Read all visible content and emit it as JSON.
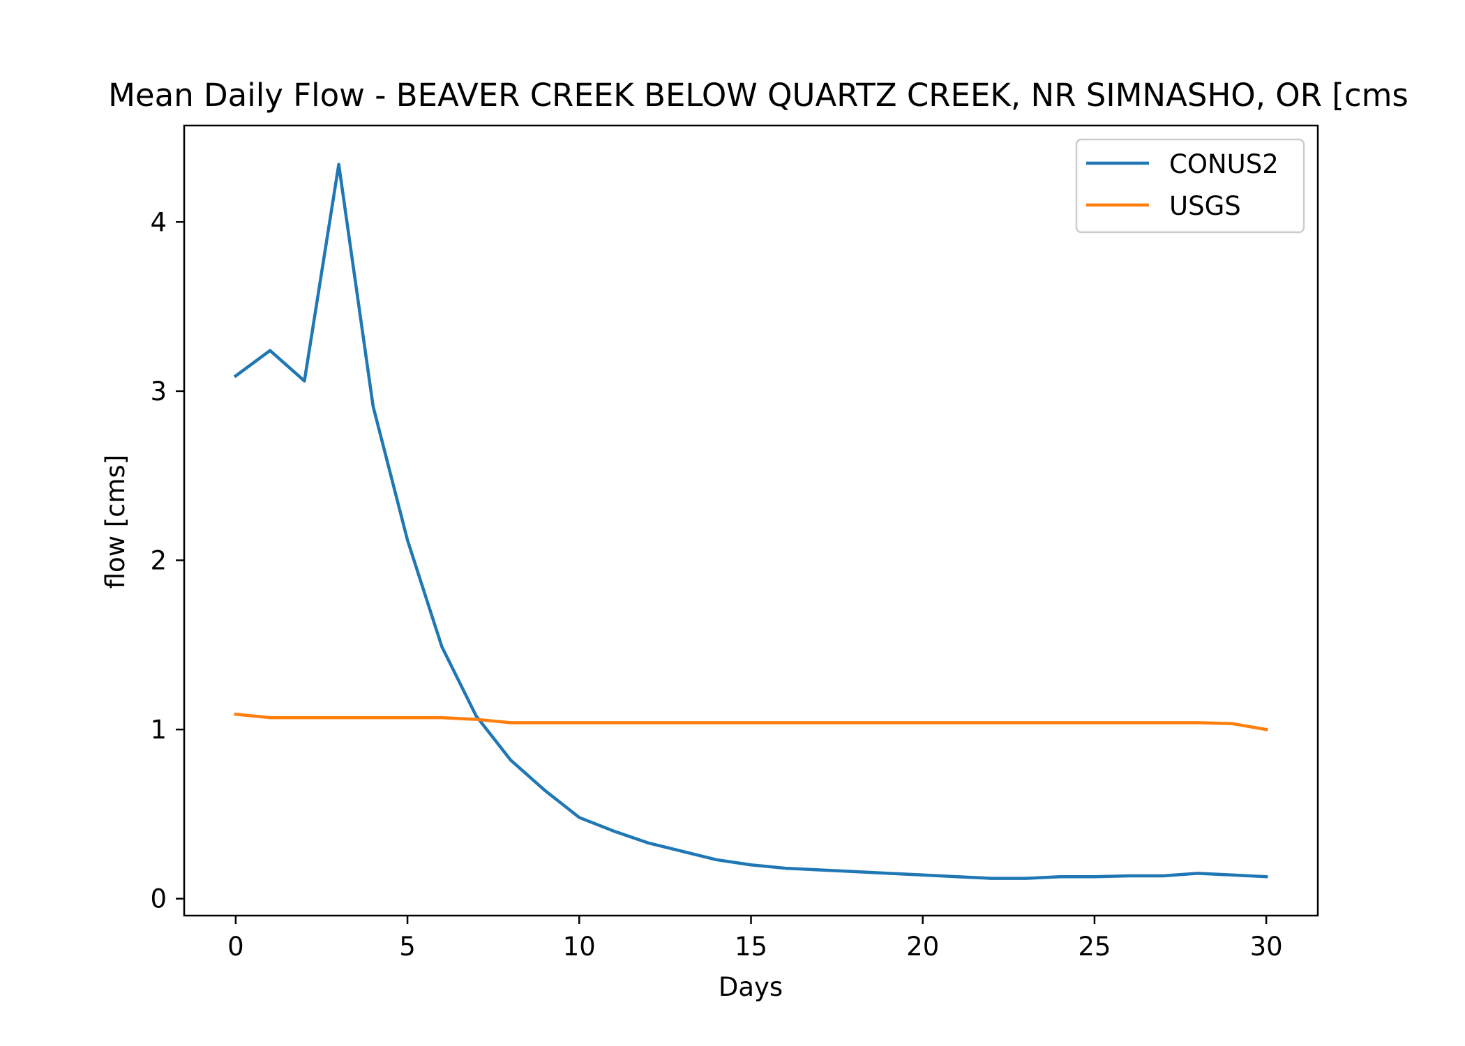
{
  "chart_data": {
    "type": "line",
    "title": "Mean Daily Flow - BEAVER CREEK BELOW QUARTZ CREEK, NR SIMNASHO, OR [cms",
    "xlabel": "Days",
    "ylabel": "flow [cms]",
    "xlim": [
      -1.5,
      31.5
    ],
    "ylim": [
      -0.1,
      4.57
    ],
    "xticks": [
      0,
      5,
      10,
      15,
      20,
      25,
      30
    ],
    "yticks": [
      0,
      1,
      2,
      3,
      4
    ],
    "grid": false,
    "legend_position": "top-right",
    "series": [
      {
        "name": "CONUS2",
        "color": "#1f77b4",
        "x": [
          0,
          1,
          2,
          3,
          4,
          5,
          6,
          7,
          8,
          9,
          10,
          11,
          12,
          13,
          14,
          15,
          16,
          17,
          18,
          19,
          20,
          21,
          22,
          23,
          24,
          25,
          26,
          27,
          28,
          29,
          30
        ],
        "values": [
          3.09,
          3.24,
          3.06,
          4.34,
          2.91,
          2.12,
          1.49,
          1.08,
          0.82,
          0.64,
          0.48,
          0.4,
          0.33,
          0.28,
          0.23,
          0.2,
          0.18,
          0.17,
          0.16,
          0.15,
          0.14,
          0.13,
          0.12,
          0.12,
          0.13,
          0.13,
          0.135,
          0.135,
          0.15,
          0.14,
          0.13
        ]
      },
      {
        "name": "USGS",
        "color": "#ff7f0e",
        "x": [
          0,
          1,
          2,
          3,
          4,
          5,
          6,
          7,
          8,
          9,
          10,
          11,
          12,
          13,
          14,
          15,
          16,
          17,
          18,
          19,
          20,
          21,
          22,
          23,
          24,
          25,
          26,
          27,
          28,
          29,
          30
        ],
        "values": [
          1.09,
          1.07,
          1.07,
          1.07,
          1.07,
          1.07,
          1.07,
          1.06,
          1.04,
          1.04,
          1.04,
          1.04,
          1.04,
          1.04,
          1.04,
          1.04,
          1.04,
          1.04,
          1.04,
          1.04,
          1.04,
          1.04,
          1.04,
          1.04,
          1.04,
          1.04,
          1.04,
          1.04,
          1.04,
          1.035,
          1.0
        ]
      }
    ]
  }
}
